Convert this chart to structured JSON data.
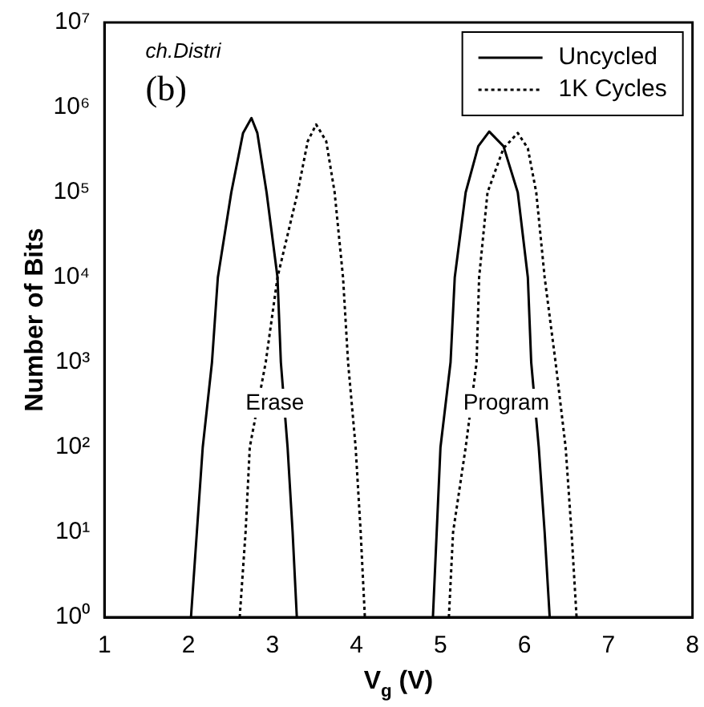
{
  "chart_data": {
    "type": "line",
    "xlabel": "V$_{g}$ (V)",
    "ylabel": "Number of Bits",
    "annotations": [
      "ch.Distri",
      "(b)",
      "Erase",
      "Program"
    ],
    "log": "y",
    "grid": false,
    "legend": "top right",
    "marker": "none",
    "xlim": [
      1,
      8
    ],
    "xticks": [
      1,
      2,
      3,
      4,
      5,
      6,
      7,
      8
    ],
    "ylim": [
      1,
      10000000
    ],
    "yticks": [
      {
        "value": 1,
        "label": "10⁰"
      },
      {
        "value": 10,
        "label": "10¹"
      },
      {
        "value": 100,
        "label": "10²"
      },
      {
        "value": 1000,
        "label": "10³"
      },
      {
        "value": 10000,
        "label": "10⁴"
      },
      {
        "value": 100000,
        "label": "10⁵"
      },
      {
        "value": 1000000,
        "label": "10⁶"
      },
      {
        "value": 10000000,
        "label": "10⁷"
      }
    ],
    "series": [
      {
        "name": "Uncycled",
        "color": "#000000",
        "line_style": "solid",
        "x": [
          2.03,
          2.1,
          2.17,
          2.28,
          2.35,
          2.51,
          2.65,
          2.75,
          2.82,
          2.93,
          3.06,
          3.1,
          3.18,
          3.24,
          3.29,
          4.0,
          4.91,
          5.0,
          5.12,
          5.17,
          5.3,
          5.45,
          5.58,
          5.75,
          5.92,
          6.04,
          6.08,
          6.17,
          6.24,
          6.3
        ],
        "values": [
          1,
          10,
          100,
          1000,
          10000,
          100000,
          500000,
          750000,
          500000,
          100000,
          10000,
          1000,
          100,
          10,
          1,
          null,
          1,
          100,
          1000,
          10000,
          100000,
          350000,
          520000,
          350000,
          100000,
          10000,
          1000,
          100,
          10,
          1
        ]
      },
      {
        "name": "1K Cycles",
        "color": "#000000",
        "line_style": "dotted",
        "x": [
          2.61,
          2.68,
          2.73,
          2.92,
          3.06,
          3.3,
          3.42,
          3.52,
          3.64,
          3.74,
          3.84,
          3.9,
          3.99,
          4.05,
          4.1,
          4.6,
          5.1,
          5.15,
          5.3,
          5.43,
          5.46,
          5.56,
          5.75,
          5.92,
          6.04,
          6.14,
          6.24,
          6.37,
          6.49,
          6.56,
          6.62
        ],
        "values": [
          1,
          10,
          100,
          1000,
          10000,
          100000,
          400000,
          630000,
          400000,
          100000,
          10000,
          1000,
          100,
          10,
          1,
          null,
          1,
          10,
          100,
          1000,
          10000,
          100000,
          330000,
          500000,
          330000,
          100000,
          10000,
          1000,
          100,
          10,
          1
        ]
      }
    ]
  }
}
